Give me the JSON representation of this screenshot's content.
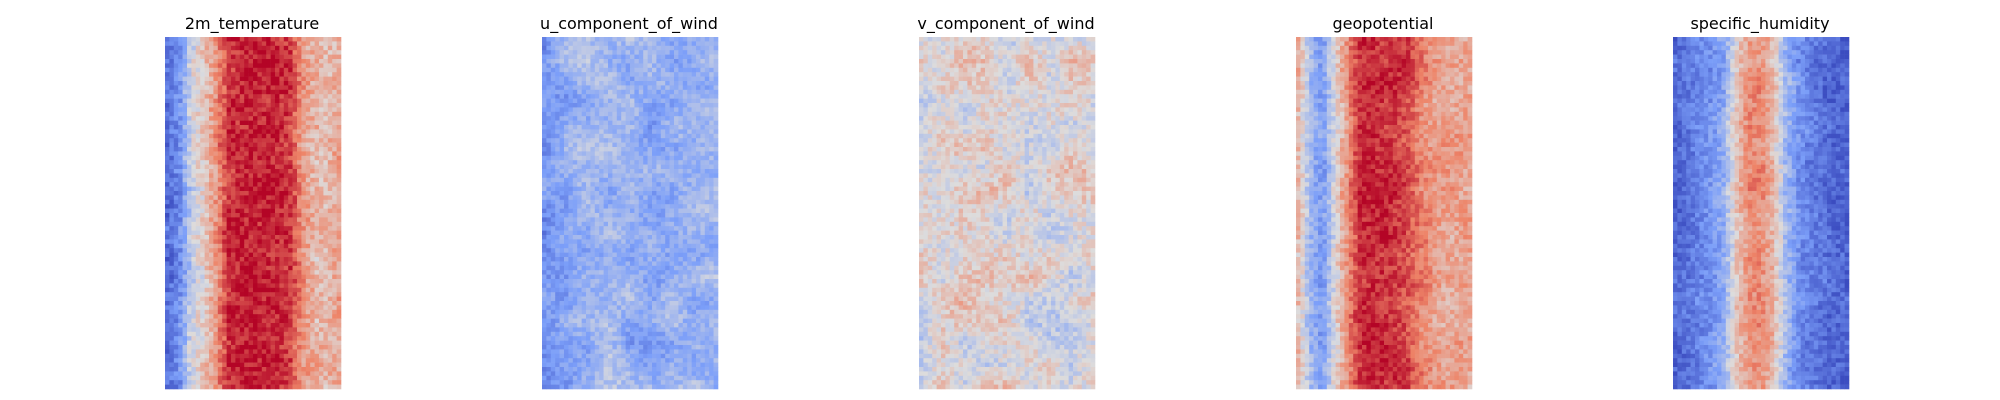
{
  "chart_data": {
    "type": "heatmap",
    "colormap": "coolwarm",
    "axes": "off",
    "grid": false,
    "legend": "none",
    "panels": [
      {
        "title": "2m_temperature",
        "profile": [
          0.12,
          0.2,
          0.45,
          0.55,
          0.7,
          0.92,
          0.95,
          0.96,
          0.95,
          0.93,
          0.9,
          0.7,
          0.62,
          0.6,
          0.66
        ],
        "noise": 0.09,
        "patch_strength": 0.05
      },
      {
        "title": "u_component_of_wind",
        "profile": [
          0.22,
          0.26,
          0.3,
          0.35,
          0.34,
          0.33,
          0.32,
          0.31,
          0.3,
          0.3,
          0.31,
          0.33,
          0.34,
          0.34,
          0.35
        ],
        "noise": 0.07,
        "patch_strength": 0.09
      },
      {
        "title": "v_component_of_wind",
        "profile": [
          0.5,
          0.51,
          0.52,
          0.52,
          0.51,
          0.5,
          0.5,
          0.51,
          0.51,
          0.5,
          0.5,
          0.49,
          0.5,
          0.51,
          0.5
        ],
        "noise": 0.08,
        "patch_strength": 0.11
      },
      {
        "title": "geopotential",
        "profile": [
          0.6,
          0.35,
          0.25,
          0.5,
          0.7,
          0.9,
          0.93,
          0.92,
          0.9,
          0.85,
          0.75,
          0.68,
          0.66,
          0.66,
          0.66
        ],
        "noise": 0.08,
        "patch_strength": 0.05
      },
      {
        "title": "specific_humidity",
        "profile": [
          0.08,
          0.12,
          0.18,
          0.22,
          0.3,
          0.55,
          0.7,
          0.72,
          0.6,
          0.35,
          0.22,
          0.16,
          0.12,
          0.08,
          0.06
        ],
        "noise": 0.08,
        "patch_strength": 0.05
      }
    ]
  }
}
